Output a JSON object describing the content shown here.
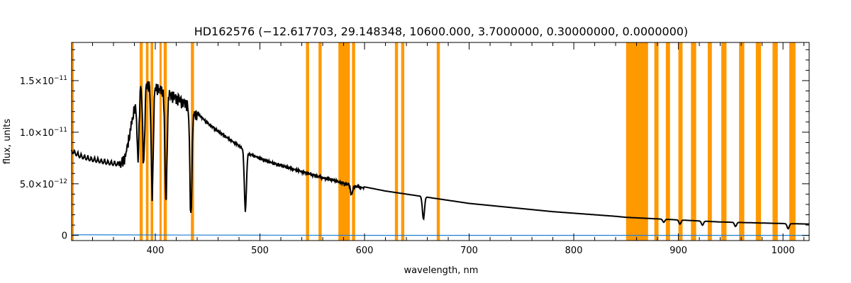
{
  "chart_data": {
    "type": "line",
    "title": "HD162576   (−12.617703, 29.148348, 10600.000, 3.7000000, 0.30000000, 0.0000000)",
    "xlabel": "wavelength, nm",
    "ylabel": "flux, units",
    "xlim": [
      320,
      1025
    ],
    "ylim": [
      -5e-13,
      1.87e-11
    ],
    "xticks": [
      400,
      500,
      600,
      700,
      800,
      900,
      1000
    ],
    "xtick_labels": [
      "400",
      "500",
      "600",
      "700",
      "800",
      "900",
      "1000"
    ],
    "xminor_step": 20,
    "yticks": [
      {
        "value": 0,
        "mantissa": "0",
        "exponent": ""
      },
      {
        "value": 5e-12,
        "mantissa": "5.0×10",
        "exponent": "−12"
      },
      {
        "value": 1e-11,
        "mantissa": "1.0×10",
        "exponent": "−11"
      },
      {
        "value": 1.5e-11,
        "mantissa": "1.5×10",
        "exponent": "−11"
      }
    ],
    "yminor_step": 1e-12,
    "masked_regions": [
      [
        320,
        322
      ],
      [
        385,
        388
      ],
      [
        391,
        393.5
      ],
      [
        395.5,
        398
      ],
      [
        404,
        406
      ],
      [
        408,
        411
      ],
      [
        434,
        437
      ],
      [
        544,
        547
      ],
      [
        556,
        559
      ],
      [
        575,
        586
      ],
      [
        588,
        591
      ],
      [
        629,
        632
      ],
      [
        635,
        638
      ],
      [
        669,
        672
      ],
      [
        850,
        871
      ],
      [
        877,
        881
      ],
      [
        888,
        892
      ],
      [
        900,
        904
      ],
      [
        912,
        917
      ],
      [
        928,
        932
      ],
      [
        941,
        946
      ],
      [
        958,
        963
      ],
      [
        974,
        979
      ],
      [
        990,
        995
      ],
      [
        1006,
        1012
      ]
    ],
    "series": [
      {
        "color": "#000000",
        "x": [
          320,
          328,
          338,
          348,
          358,
          366,
          371,
          375,
          380,
          386,
          392,
          400,
          410,
          420,
          430,
          440,
          450,
          460,
          470,
          480,
          490,
          500,
          510,
          520,
          530,
          540,
          550,
          560,
          570,
          575,
          590,
          600,
          620,
          640,
          660,
          680,
          700,
          720,
          740,
          760,
          780,
          800,
          820,
          840,
          850,
          880,
          900,
          920,
          940,
          960,
          980,
          1000,
          1025
        ],
        "y": [
          8.5e-12,
          8e-12,
          7.7e-12,
          7.5e-12,
          7.3e-12,
          7.2e-12,
          8e-12,
          1e-11,
          1.28e-11,
          1.5e-11,
          1.52e-11,
          1.48e-11,
          1.43e-11,
          1.38e-11,
          1.32e-11,
          1.2e-11,
          1.1e-11,
          1.02e-11,
          9.5e-12,
          8.8e-12,
          8e-12,
          7.6e-12,
          7.2e-12,
          6.9e-12,
          6.6e-12,
          6.3e-12,
          6e-12,
          5.7e-12,
          5.5e-12,
          5.3e-12,
          4.9e-12,
          4.7e-12,
          4.3e-12,
          4e-12,
          3.7e-12,
          3.4e-12,
          3.1e-12,
          2.9e-12,
          2.7e-12,
          2.5e-12,
          2.3e-12,
          2.15e-12,
          2e-12,
          1.85e-12,
          1.75e-12,
          1.6e-12,
          1.5e-12,
          1.4e-12,
          1.3e-12,
          1.25e-12,
          1.2e-12,
          1.15e-12,
          1.1e-12
        ]
      },
      {
        "color": "#1e7fd6",
        "x": [
          320,
          400,
          500,
          600,
          700,
          800,
          900,
          1025
        ],
        "y": [
          6e-14,
          4e-14,
          2e-14,
          1e-14,
          1e-14,
          1e-14,
          1e-14,
          1e-14
        ]
      }
    ],
    "absorption_lines": [
      {
        "x": 383.5,
        "depth": 6e-12
      },
      {
        "x": 388.9,
        "depth": 7.5e-12
      },
      {
        "x": 397.0,
        "depth": 1.05e-11
      },
      {
        "x": 410.2,
        "depth": 1.05e-11
      },
      {
        "x": 434.0,
        "depth": 1.05e-11
      },
      {
        "x": 486.1,
        "depth": 5.8e-12
      },
      {
        "x": 587.6,
        "depth": 9e-13
      },
      {
        "x": 656.3,
        "depth": 2.2e-12
      },
      {
        "x": 886.0,
        "depth": 3e-13
      },
      {
        "x": 901.5,
        "depth": 4e-13
      },
      {
        "x": 923.0,
        "depth": 4e-13
      },
      {
        "x": 954.6,
        "depth": 4e-13
      },
      {
        "x": 1004.9,
        "depth": 5e-13
      }
    ]
  }
}
